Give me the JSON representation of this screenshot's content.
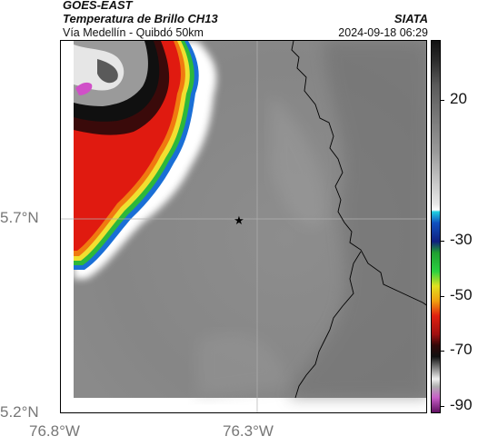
{
  "header": {
    "satellite": "GOES-EAST",
    "product": "Temperatura de Brillo CH13",
    "route": "Vía Medellín - Quibdó 50km",
    "agency": "SIATA",
    "datetime": "2024-09-18 06:29"
  },
  "map": {
    "lat_ticks": [
      "5.7°N",
      "5.2°N"
    ],
    "lon_ticks": [
      "76.8°W",
      "76.3°W"
    ],
    "marker": "star-marker",
    "colors": {
      "background_gray": "#8c8c8c",
      "border_line": "#000000",
      "grid_line": "#b0b0b0"
    }
  },
  "colorbar": {
    "labels": [
      "20",
      "-30",
      "-50",
      "-70",
      "-90"
    ]
  }
}
